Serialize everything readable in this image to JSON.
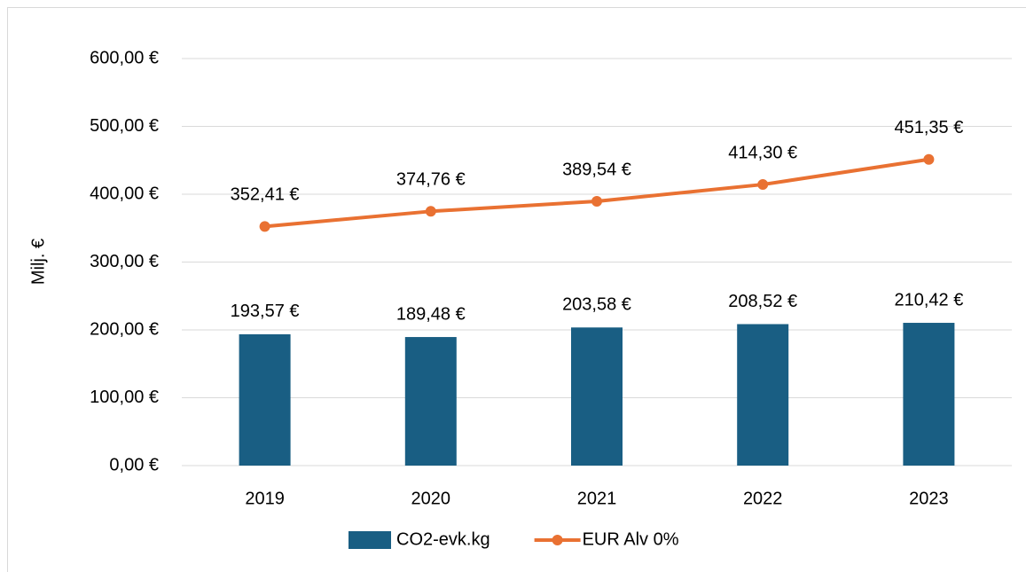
{
  "chart_data": {
    "type": "combo",
    "y_label": "Milj. €",
    "categories": [
      "2019",
      "2020",
      "2021",
      "2022",
      "2023"
    ],
    "series": [
      {
        "name": "CO2-evk.kg",
        "type": "bar",
        "color": "#195e83",
        "values": [
          193.57,
          189.48,
          203.58,
          208.52,
          210.42
        ],
        "value_labels": [
          "193,57 €",
          "189,48 €",
          "203,58 €",
          "208,52 €",
          "210,42 €"
        ]
      },
      {
        "name": "EUR Alv 0%",
        "type": "line",
        "color": "#e97132",
        "values": [
          352.41,
          374.76,
          389.54,
          414.3,
          451.35
        ],
        "value_labels": [
          "352,41 €",
          "374,76 €",
          "389,54 €",
          "414,30 €",
          "451,35 €"
        ]
      }
    ],
    "ylim": [
      0,
      600
    ],
    "yticks": [
      {
        "value": 0,
        "label": "0,00 €"
      },
      {
        "value": 100,
        "label": "100,00 €"
      },
      {
        "value": 200,
        "label": "200,00 €"
      },
      {
        "value": 300,
        "label": "300,00 €"
      },
      {
        "value": 400,
        "label": "400,00 €"
      },
      {
        "value": 500,
        "label": "500,00 €"
      },
      {
        "value": 600,
        "label": "600,00 €"
      }
    ],
    "grid": true,
    "legend": "bottom"
  }
}
